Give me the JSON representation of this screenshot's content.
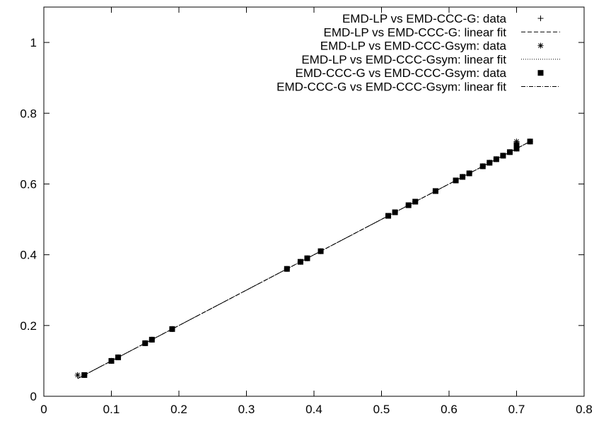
{
  "chart_data": {
    "type": "scatter",
    "title": "",
    "xlabel": "",
    "ylabel": "",
    "xlim": [
      0,
      0.8
    ],
    "ylim": [
      0,
      1.1
    ],
    "x_ticks": [
      "0",
      "0.1",
      "0.2",
      "0.3",
      "0.4",
      "0.5",
      "0.6",
      "0.7",
      "0.8"
    ],
    "y_ticks": [
      "0",
      "0.2",
      "0.4",
      "0.6",
      "0.8",
      "1"
    ],
    "x_tick_values": [
      0,
      0.1,
      0.2,
      0.3,
      0.4,
      0.5,
      0.6,
      0.7,
      0.8
    ],
    "y_tick_values": [
      0,
      0.2,
      0.4,
      0.6,
      0.8,
      1.0
    ],
    "grid": false,
    "legend_position": "top-right",
    "series": [
      {
        "name": "EMD-LP vs EMD-CCC-G: data",
        "kind": "points",
        "marker": "plus",
        "x": [
          0.05,
          0.06,
          0.1,
          0.11,
          0.15,
          0.16,
          0.19,
          0.36,
          0.38,
          0.39,
          0.41,
          0.51,
          0.52,
          0.54,
          0.55,
          0.58,
          0.61,
          0.62,
          0.63,
          0.65,
          0.66,
          0.67,
          0.68,
          0.69,
          0.7,
          0.7,
          0.72
        ],
        "y": [
          0.06,
          0.06,
          0.1,
          0.11,
          0.15,
          0.16,
          0.19,
          0.36,
          0.38,
          0.39,
          0.41,
          0.51,
          0.52,
          0.54,
          0.55,
          0.58,
          0.61,
          0.62,
          0.63,
          0.65,
          0.66,
          0.67,
          0.68,
          0.69,
          0.7,
          0.72,
          0.72
        ]
      },
      {
        "name": "EMD-LP vs EMD-CCC-G: linear fit",
        "kind": "line",
        "dash": "6,3",
        "x": [
          0.05,
          0.72
        ],
        "y": [
          0.05,
          0.72
        ]
      },
      {
        "name": "EMD-LP vs EMD-CCC-Gsym: data",
        "kind": "points",
        "marker": "star",
        "x": [
          0.05,
          0.06,
          0.1,
          0.11,
          0.15,
          0.16,
          0.19,
          0.36,
          0.38,
          0.39,
          0.41,
          0.51,
          0.52,
          0.54,
          0.55,
          0.58,
          0.61,
          0.62,
          0.63,
          0.65,
          0.66,
          0.67,
          0.68,
          0.69,
          0.7,
          0.7,
          0.7,
          0.72
        ],
        "y": [
          0.06,
          0.06,
          0.1,
          0.11,
          0.15,
          0.16,
          0.19,
          0.36,
          0.38,
          0.39,
          0.41,
          0.51,
          0.52,
          0.54,
          0.55,
          0.58,
          0.61,
          0.62,
          0.63,
          0.65,
          0.66,
          0.67,
          0.68,
          0.69,
          0.7,
          0.71,
          0.72,
          0.72
        ]
      },
      {
        "name": "EMD-LP vs EMD-CCC-Gsym: linear fit",
        "kind": "line",
        "dash": "1,2",
        "x": [
          0.05,
          0.72
        ],
        "y": [
          0.05,
          0.72
        ]
      },
      {
        "name": "EMD-CCC-G vs EMD-CCC-Gsym: data",
        "kind": "points",
        "marker": "square",
        "x": [
          0.06,
          0.1,
          0.11,
          0.15,
          0.16,
          0.19,
          0.36,
          0.38,
          0.39,
          0.41,
          0.51,
          0.52,
          0.54,
          0.55,
          0.58,
          0.61,
          0.62,
          0.63,
          0.65,
          0.66,
          0.67,
          0.68,
          0.69,
          0.7,
          0.7,
          0.72
        ],
        "y": [
          0.06,
          0.1,
          0.11,
          0.15,
          0.16,
          0.19,
          0.36,
          0.38,
          0.39,
          0.41,
          0.51,
          0.52,
          0.54,
          0.55,
          0.58,
          0.61,
          0.62,
          0.63,
          0.65,
          0.66,
          0.67,
          0.68,
          0.69,
          0.7,
          0.71,
          0.72
        ]
      },
      {
        "name": "EMD-CCC-G vs EMD-CCC-Gsym: linear fit",
        "kind": "line",
        "dash": "6,2,1,2",
        "x": [
          0.05,
          0.72
        ],
        "y": [
          0.05,
          0.72
        ]
      }
    ]
  }
}
